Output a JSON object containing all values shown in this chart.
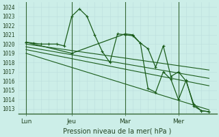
{
  "background_color": "#cceee8",
  "grid_color_minor": "#bbdddd",
  "grid_color_major": "#99cccc",
  "line_color": "#1a5c1a",
  "vline_color": "#336633",
  "xlabel": "Pression niveau de la mer( hPa )",
  "ylim": [
    1012.5,
    1024.5
  ],
  "xlim": [
    0,
    13.0
  ],
  "yticks": [
    1013,
    1014,
    1015,
    1016,
    1017,
    1018,
    1019,
    1020,
    1021,
    1022,
    1023,
    1024
  ],
  "xtick_labels": [
    "Lun",
    "Jeu",
    "Mar",
    "Mer"
  ],
  "xtick_positions": [
    0.5,
    3.5,
    7.0,
    10.5
  ],
  "vline_positions": [
    0.5,
    3.5,
    7.0,
    10.5
  ],
  "series_with_markers": [
    {
      "x": [
        0.5,
        1.0,
        1.5,
        2.0,
        2.5,
        3.0,
        3.5,
        4.0,
        4.5,
        5.0,
        5.5,
        6.0,
        6.5,
        7.0,
        7.5,
        8.0,
        8.5,
        9.0,
        9.5,
        10.0,
        10.5,
        11.0,
        11.5,
        12.0,
        12.5
      ],
      "y": [
        1020.2,
        1020.1,
        1020.0,
        1020.0,
        1020.0,
        1019.8,
        1023.0,
        1023.8,
        1023.0,
        1021.0,
        1019.2,
        1018.0,
        1021.1,
        1021.0,
        1020.9,
        1020.1,
        1019.5,
        1017.5,
        1019.8,
        1016.5,
        1017.0,
        1016.0,
        1013.5,
        1012.8,
        1012.7
      ]
    },
    {
      "x": [
        0.5,
        3.5,
        7.0,
        7.5,
        8.0,
        8.5,
        9.0,
        9.5,
        10.0,
        10.5,
        11.0,
        11.5,
        12.0,
        12.5
      ],
      "y": [
        1020.2,
        1019.0,
        1021.1,
        1021.0,
        1020.1,
        1015.2,
        1014.8,
        1017.0,
        1016.2,
        1014.0,
        1016.1,
        1013.3,
        1012.8,
        1012.7
      ]
    }
  ],
  "series_trend": [
    {
      "x": [
        0.5,
        12.5
      ],
      "y": [
        1020.0,
        1017.2
      ]
    },
    {
      "x": [
        0.5,
        12.5
      ],
      "y": [
        1019.7,
        1016.3
      ]
    },
    {
      "x": [
        0.5,
        12.5
      ],
      "y": [
        1019.4,
        1015.5
      ]
    },
    {
      "x": [
        0.5,
        12.5
      ],
      "y": [
        1019.0,
        1012.9
      ]
    }
  ]
}
